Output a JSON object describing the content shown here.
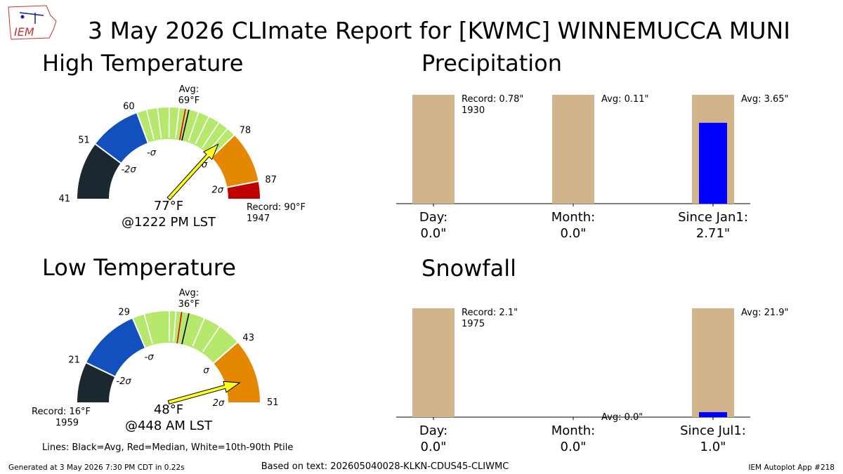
{
  "header": {
    "logo_text": "IEM",
    "title": "3 May 2026 CLImate Report for [KWMC] WINNEMUCCA MUNI"
  },
  "footer": {
    "generated": "Generated at 3 May 2026 7:30 PM CDT in 0.22s",
    "source": "Based on text: 202605040028-KLKN-CDUS45-CLIWMC",
    "app": "IEM Autoplot App #218",
    "legend_note": "Lines: Black=Avg, Red=Median, White=10th-90th Ptile"
  },
  "colors": {
    "below_2sigma": "#1c2830",
    "below_1sigma": "#1150bd",
    "normal": "#b6e86e",
    "above_1sigma": "#e38800",
    "record_zone": "#c00000",
    "needle": "#ffff1a",
    "bar_avg": "#d2b48c",
    "bar_obs": "#0000ff"
  },
  "chart_data": [
    {
      "type": "gauge",
      "title": "High Temperature",
      "gauge_min": 41,
      "gauge_max": 90,
      "range_labels": [
        "41",
        "51",
        "60",
        "78",
        "87"
      ],
      "sigma_labels": [
        "-2σ",
        "-σ",
        "σ",
        "2σ"
      ],
      "bands": [
        {
          "from": 41,
          "to": 51,
          "color": "below_2sigma"
        },
        {
          "from": 51,
          "to": 60,
          "color": "below_1sigma"
        },
        {
          "from": 60,
          "to": 78,
          "color": "normal"
        },
        {
          "from": 78,
          "to": 87,
          "color": "above_1sigma"
        },
        {
          "from": 87,
          "to": 90,
          "color": "record_zone"
        }
      ],
      "avg_label": "Avg:",
      "avg_value_text": "69°F",
      "avg": 69,
      "median": 68.4,
      "percentile_lines": [
        61.7,
        63.6,
        65.6,
        67.3,
        70.7,
        72.6,
        74.6,
        76.4
      ],
      "observed": 77,
      "observed_text": "77°F",
      "time_text": "@1222 PM LST",
      "record_label": "Record: 90°F",
      "record_year": "1947"
    },
    {
      "type": "gauge",
      "title": "Low Temperature",
      "gauge_min": 16,
      "gauge_max": 51,
      "range_labels": [
        "21",
        "29",
        "43",
        "51"
      ],
      "sigma_labels": [
        "-2σ",
        "-σ",
        "σ",
        "2σ"
      ],
      "bands": [
        {
          "from": 16,
          "to": 21,
          "color": "below_2sigma"
        },
        {
          "from": 21,
          "to": 29,
          "color": "below_1sigma"
        },
        {
          "from": 29,
          "to": 43,
          "color": "normal"
        },
        {
          "from": 43,
          "to": 51,
          "color": "above_1sigma"
        }
      ],
      "avg_label": "Avg:",
      "avg_value_text": "36°F",
      "avg": 36,
      "median": 35.1,
      "percentile_lines": [
        30.5,
        33.6,
        34.4,
        38.0,
        40.1
      ],
      "observed": 48,
      "observed_text": "48°F",
      "time_text": "@448 AM LST",
      "record_label": "Record: 16°F",
      "record_year": "1959"
    },
    {
      "type": "bar",
      "title": "Precipitation",
      "categories": [
        "Day:",
        "Month:",
        "Since Jan1:"
      ],
      "value_labels": [
        "0.0\"",
        "0.0\"",
        "2.71\""
      ],
      "values": [
        0.0,
        0.0,
        2.71
      ],
      "normalized_to": [
        0.78,
        0.11,
        3.65
      ],
      "annotations": [
        {
          "line1": "Record: 0.78\"",
          "line2": "1930"
        },
        {
          "line1": "Avg: 0.11\"",
          "line2": ""
        },
        {
          "line1": "Avg: 3.65\"",
          "line2": ""
        }
      ]
    },
    {
      "type": "bar",
      "title": "Snowfall",
      "categories": [
        "Day:",
        "Month:",
        "Since Jul1:"
      ],
      "value_labels": [
        "0.0\"",
        "0.0\"",
        "1.0\""
      ],
      "values": [
        0.0,
        0.0,
        1.0
      ],
      "normalized_to": [
        2.1,
        0.0,
        21.9
      ],
      "annotations": [
        {
          "line1": "Record: 2.1\"",
          "line2": "1975"
        },
        {
          "line1": "Avg: 0.0\"",
          "line2": ""
        },
        {
          "line1": "Avg: 21.9\"",
          "line2": ""
        }
      ]
    }
  ]
}
